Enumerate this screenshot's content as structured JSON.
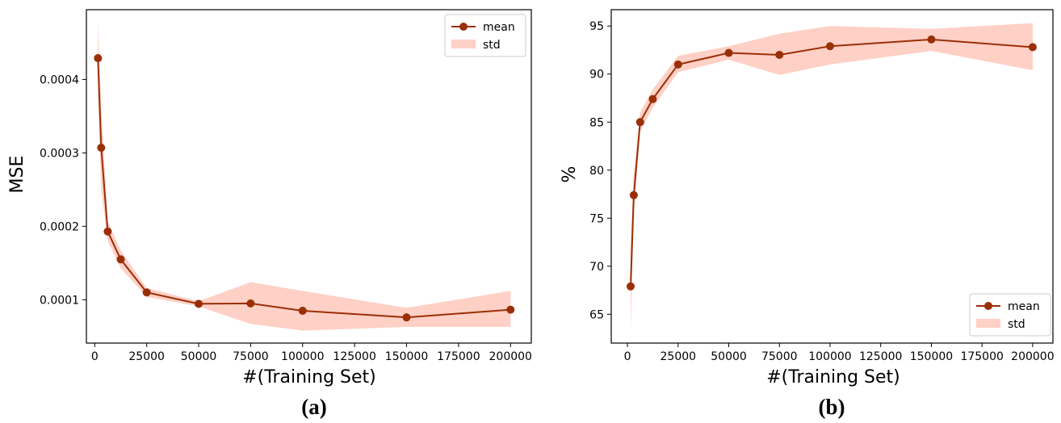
{
  "colors": {
    "line": "#9a2f06",
    "band": "#ffd0c6",
    "axis": "#000000"
  },
  "chart_data": [
    {
      "type": "line",
      "panel_label": "(a)",
      "xlabel": "#(Training Set)",
      "ylabel": "MSE",
      "xlim": [
        -4000,
        210000
      ],
      "ylim": [
        4.1e-05,
        0.000495
      ],
      "xticks": [
        0,
        25000,
        50000,
        75000,
        100000,
        125000,
        150000,
        175000,
        200000
      ],
      "xtick_labels": [
        "0",
        "25000",
        "50000",
        "75000",
        "100000",
        "125000",
        "150000",
        "175000",
        "200000"
      ],
      "yticks": [
        0.0001,
        0.0002,
        0.0003,
        0.0004
      ],
      "ytick_labels": [
        "0.0001",
        "0.0002",
        "0.0003",
        "0.0004"
      ],
      "legend_position": "upper right",
      "legend": [
        "mean",
        "std"
      ],
      "x": [
        1562,
        3125,
        6250,
        12500,
        25000,
        50000,
        75000,
        100000,
        150000,
        200000
      ],
      "series": [
        {
          "name": "mean",
          "values": [
            0.000429,
            0.000307,
            0.000193,
            0.000155,
            0.00011,
            9.45e-05,
            9.5e-05,
            8.5e-05,
            7.6e-05,
            8.65e-05
          ],
          "std_lower": [
            0.00038,
            0.00025,
            0.00018,
            0.000143,
            0.000104,
            9.1e-05,
            6.7e-05,
            5.8e-05,
            6.3e-05,
            6.3e-05
          ],
          "std_upper": [
            0.000479,
            0.000364,
            0.000207,
            0.000167,
            0.000116,
            9.8e-05,
            0.000124,
            0.000112,
            8.9e-05,
            0.000112
          ]
        }
      ]
    },
    {
      "type": "line",
      "panel_label": "(b)",
      "xlabel": "#(Training Set)",
      "ylabel": "%",
      "xlim": [
        -8000,
        210000
      ],
      "ylim": [
        62.0,
        96.7
      ],
      "xticks": [
        0,
        25000,
        50000,
        75000,
        100000,
        125000,
        150000,
        175000,
        200000
      ],
      "xtick_labels": [
        "0",
        "25000",
        "50000",
        "75000",
        "100000",
        "125000",
        "150000",
        "175000",
        "200000"
      ],
      "yticks": [
        65,
        70,
        75,
        80,
        85,
        90,
        95
      ],
      "ytick_labels": [
        "65",
        "70",
        "75",
        "80",
        "85",
        "90",
        "95"
      ],
      "legend_position": "lower right",
      "legend": [
        "mean",
        "std"
      ],
      "x": [
        1562,
        3125,
        6250,
        12500,
        25000,
        50000,
        75000,
        100000,
        150000,
        200000
      ],
      "series": [
        {
          "name": "mean",
          "values": [
            67.9,
            77.4,
            85.0,
            87.4,
            91.0,
            92.2,
            92.0,
            92.9,
            93.6,
            92.8
          ],
          "std_lower": [
            63.5,
            75.5,
            84.0,
            86.5,
            90.2,
            91.5,
            89.9,
            91.0,
            92.4,
            90.4
          ],
          "std_upper": [
            72.2,
            79.5,
            86.0,
            88.4,
            91.9,
            92.9,
            94.2,
            95.0,
            94.7,
            95.3
          ]
        }
      ]
    }
  ]
}
